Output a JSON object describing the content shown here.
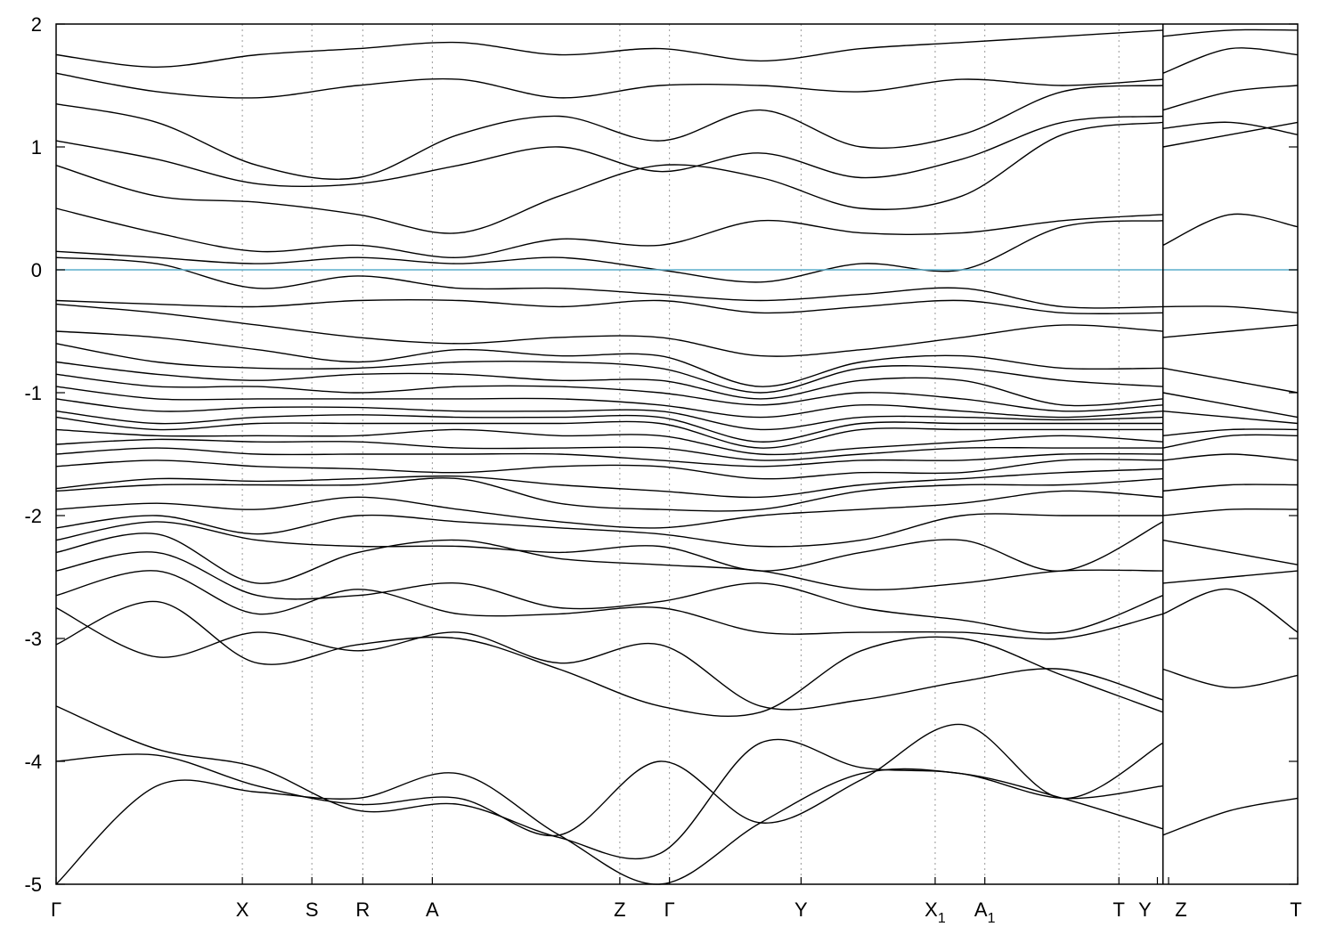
{
  "chart_data": {
    "type": "line",
    "title": "",
    "xlabel": "",
    "ylabel": "",
    "ylim": [
      -5,
      2
    ],
    "y_ticks": [
      2,
      1,
      0,
      -1,
      -2,
      -3,
      -4,
      -5
    ],
    "y_tick_labels": [
      "2",
      "1",
      "0",
      "-1",
      "-2",
      "-3",
      "-4",
      "-5"
    ],
    "fermi_level": 0,
    "fermi_color": "#5aaecb",
    "band_color": "#000000",
    "grid": "vertical dashed at high-symmetry points",
    "k_points": [
      {
        "label": "Γ",
        "sub": "",
        "pos": 0.0,
        "dashed": false
      },
      {
        "label": "X",
        "sub": "",
        "pos": 0.15,
        "dashed": true
      },
      {
        "label": "S",
        "sub": "",
        "pos": 0.206,
        "dashed": true
      },
      {
        "label": "R",
        "sub": "",
        "pos": 0.247,
        "dashed": true
      },
      {
        "label": "A",
        "sub": "",
        "pos": 0.303,
        "dashed": true
      },
      {
        "label": "Z",
        "sub": "",
        "pos": 0.454,
        "dashed": true
      },
      {
        "label": "Γ",
        "sub": "",
        "pos": 0.494,
        "dashed": true
      },
      {
        "label": "Y",
        "sub": "",
        "pos": 0.6,
        "dashed": true
      },
      {
        "label": "X",
        "sub": "1",
        "pos": 0.708,
        "dashed": true
      },
      {
        "label": "A",
        "sub": "1",
        "pos": 0.748,
        "dashed": true
      },
      {
        "label": "T",
        "sub": "",
        "pos": 0.856,
        "dashed": true
      },
      {
        "label": "Y",
        "sub": "",
        "pos": 0.887,
        "dashed": false
      },
      {
        "label": "Z",
        "sub": "",
        "pos": 0.896,
        "dashed": false
      },
      {
        "label": "T",
        "sub": "",
        "pos": 1.0,
        "dashed": false
      }
    ],
    "break_pos": 0.8915,
    "segments": [
      {
        "from": 0.0,
        "to": 0.8915,
        "bands": [
          [
            -5.0,
            -4.2,
            -4.25,
            -4.3,
            -4.1,
            -4.6,
            -5.0,
            -4.5,
            -4.1,
            -4.1,
            -4.3,
            -4.55
          ],
          [
            -4.0,
            -3.95,
            -4.2,
            -4.35,
            -4.3,
            -4.6,
            -4.0,
            -4.5,
            -4.15,
            -3.7,
            -4.3,
            -3.85
          ],
          [
            -3.55,
            -3.9,
            -4.05,
            -4.4,
            -4.35,
            -4.62,
            -4.75,
            -3.85,
            -4.05,
            -4.1,
            -4.3,
            -4.2
          ],
          [
            -3.05,
            -2.7,
            -3.2,
            -3.05,
            -3.0,
            -3.25,
            -3.55,
            -3.6,
            -3.1,
            -3.0,
            -3.3,
            -3.6
          ],
          [
            -2.75,
            -3.15,
            -2.95,
            -3.1,
            -2.95,
            -3.2,
            -3.05,
            -3.55,
            -3.5,
            -3.35,
            -3.25,
            -3.5
          ],
          [
            -2.65,
            -2.45,
            -2.8,
            -2.6,
            -2.8,
            -2.8,
            -2.75,
            -2.95,
            -2.95,
            -2.95,
            -3.0,
            -2.8
          ],
          [
            -2.45,
            -2.3,
            -2.65,
            -2.65,
            -2.55,
            -2.75,
            -2.7,
            -2.55,
            -2.75,
            -2.85,
            -2.95,
            -2.65
          ],
          [
            -2.3,
            -2.15,
            -2.55,
            -2.3,
            -2.2,
            -2.35,
            -2.4,
            -2.45,
            -2.6,
            -2.55,
            -2.45,
            -2.45
          ],
          [
            -2.2,
            -2.05,
            -2.2,
            -2.25,
            -2.25,
            -2.3,
            -2.25,
            -2.45,
            -2.3,
            -2.2,
            -2.45,
            -2.05
          ],
          [
            -2.1,
            -2.0,
            -2.15,
            -2.0,
            -2.05,
            -2.1,
            -2.15,
            -2.25,
            -2.2,
            -2.0,
            -2.0,
            -2.0
          ],
          [
            -1.95,
            -1.9,
            -1.95,
            -1.85,
            -1.95,
            -2.05,
            -2.1,
            -2.0,
            -1.95,
            -1.9,
            -1.8,
            -1.85
          ],
          [
            -1.8,
            -1.75,
            -1.75,
            -1.75,
            -1.7,
            -1.9,
            -1.95,
            -1.95,
            -1.8,
            -1.75,
            -1.75,
            -1.7
          ],
          [
            -1.78,
            -1.7,
            -1.72,
            -1.7,
            -1.68,
            -1.75,
            -1.8,
            -1.85,
            -1.75,
            -1.7,
            -1.65,
            -1.62
          ],
          [
            -1.6,
            -1.55,
            -1.6,
            -1.62,
            -1.65,
            -1.6,
            -1.6,
            -1.7,
            -1.65,
            -1.65,
            -1.55,
            -1.55
          ],
          [
            -1.5,
            -1.45,
            -1.5,
            -1.5,
            -1.5,
            -1.5,
            -1.55,
            -1.6,
            -1.55,
            -1.55,
            -1.5,
            -1.5
          ],
          [
            -1.42,
            -1.38,
            -1.4,
            -1.4,
            -1.45,
            -1.45,
            -1.45,
            -1.55,
            -1.5,
            -1.45,
            -1.45,
            -1.45
          ],
          [
            -1.3,
            -1.35,
            -1.35,
            -1.35,
            -1.3,
            -1.35,
            -1.35,
            -1.5,
            -1.45,
            -1.4,
            -1.35,
            -1.4
          ],
          [
            -1.2,
            -1.3,
            -1.25,
            -1.25,
            -1.25,
            -1.25,
            -1.25,
            -1.45,
            -1.3,
            -1.3,
            -1.3,
            -1.3
          ],
          [
            -1.15,
            -1.25,
            -1.2,
            -1.18,
            -1.2,
            -1.2,
            -1.2,
            -1.4,
            -1.25,
            -1.25,
            -1.25,
            -1.25
          ],
          [
            -1.05,
            -1.15,
            -1.12,
            -1.12,
            -1.15,
            -1.15,
            -1.15,
            -1.3,
            -1.2,
            -1.2,
            -1.22,
            -1.2
          ],
          [
            -0.95,
            -1.05,
            -1.05,
            -1.05,
            -1.05,
            -1.05,
            -1.1,
            -1.2,
            -1.1,
            -1.15,
            -1.2,
            -1.15
          ],
          [
            -0.85,
            -0.95,
            -0.95,
            -1.0,
            -0.95,
            -0.95,
            -1.0,
            -1.1,
            -1.0,
            -1.05,
            -1.15,
            -1.1
          ],
          [
            -0.75,
            -0.85,
            -0.9,
            -0.85,
            -0.85,
            -0.9,
            -0.9,
            -1.05,
            -0.9,
            -0.9,
            -1.1,
            -1.05
          ],
          [
            -0.6,
            -0.75,
            -0.8,
            -0.8,
            -0.75,
            -0.75,
            -0.8,
            -1.0,
            -0.8,
            -0.8,
            -0.9,
            -0.95
          ],
          [
            -0.5,
            -0.55,
            -0.65,
            -0.75,
            -0.65,
            -0.7,
            -0.7,
            -0.95,
            -0.75,
            -0.7,
            -0.8,
            -0.8
          ],
          [
            -0.28,
            -0.35,
            -0.45,
            -0.55,
            -0.6,
            -0.55,
            -0.55,
            -0.7,
            -0.65,
            -0.55,
            -0.45,
            -0.5
          ],
          [
            -0.25,
            -0.28,
            -0.3,
            -0.25,
            -0.25,
            -0.3,
            -0.25,
            -0.35,
            -0.3,
            -0.25,
            -0.35,
            -0.35
          ],
          [
            0.1,
            0.05,
            -0.15,
            -0.05,
            -0.15,
            -0.15,
            -0.2,
            -0.25,
            -0.2,
            -0.15,
            -0.3,
            -0.3
          ],
          [
            0.15,
            0.1,
            0.05,
            0.1,
            0.05,
            0.1,
            0.0,
            -0.1,
            0.05,
            0.0,
            0.35,
            0.4
          ],
          [
            0.5,
            0.3,
            0.15,
            0.2,
            0.1,
            0.25,
            0.2,
            0.4,
            0.3,
            0.3,
            0.4,
            0.45
          ],
          [
            0.85,
            0.6,
            0.55,
            0.45,
            0.3,
            0.6,
            0.85,
            0.75,
            0.5,
            0.6,
            1.1,
            1.2
          ],
          [
            1.05,
            0.9,
            0.7,
            0.7,
            0.85,
            1.0,
            0.8,
            0.95,
            0.75,
            0.9,
            1.2,
            1.25
          ],
          [
            1.35,
            1.2,
            0.85,
            0.75,
            1.1,
            1.25,
            1.05,
            1.3,
            1.0,
            1.1,
            1.45,
            1.5
          ],
          [
            1.6,
            1.45,
            1.4,
            1.5,
            1.55,
            1.4,
            1.5,
            1.5,
            1.45,
            1.55,
            1.5,
            1.55
          ],
          [
            1.75,
            1.65,
            1.75,
            1.8,
            1.85,
            1.75,
            1.8,
            1.7,
            1.8,
            1.85,
            1.9,
            1.95
          ]
        ]
      },
      {
        "from": 0.8915,
        "to": 1.0,
        "bands": [
          [
            -4.6,
            -4.4,
            -4.3
          ],
          [
            -3.25,
            -3.4,
            -3.3
          ],
          [
            -2.8,
            -2.6,
            -2.95
          ],
          [
            -2.55,
            -2.5,
            -2.45
          ],
          [
            -2.2,
            -2.3,
            -2.4
          ],
          [
            -2.0,
            -1.95,
            -1.95
          ],
          [
            -1.8,
            -1.75,
            -1.75
          ],
          [
            -1.55,
            -1.5,
            -1.55
          ],
          [
            -1.45,
            -1.35,
            -1.35
          ],
          [
            -1.35,
            -1.3,
            -1.3
          ],
          [
            -1.15,
            -1.2,
            -1.25
          ],
          [
            -1.0,
            -1.1,
            -1.2
          ],
          [
            -0.8,
            -0.9,
            -1.0
          ],
          [
            -0.55,
            -0.5,
            -0.45
          ],
          [
            -0.3,
            -0.3,
            -0.35
          ],
          [
            0.2,
            0.45,
            0.35
          ],
          [
            1.0,
            1.1,
            1.2
          ],
          [
            1.15,
            1.2,
            1.1
          ],
          [
            1.3,
            1.45,
            1.5
          ],
          [
            1.6,
            1.8,
            1.75
          ],
          [
            1.9,
            1.95,
            1.95
          ]
        ]
      }
    ]
  }
}
